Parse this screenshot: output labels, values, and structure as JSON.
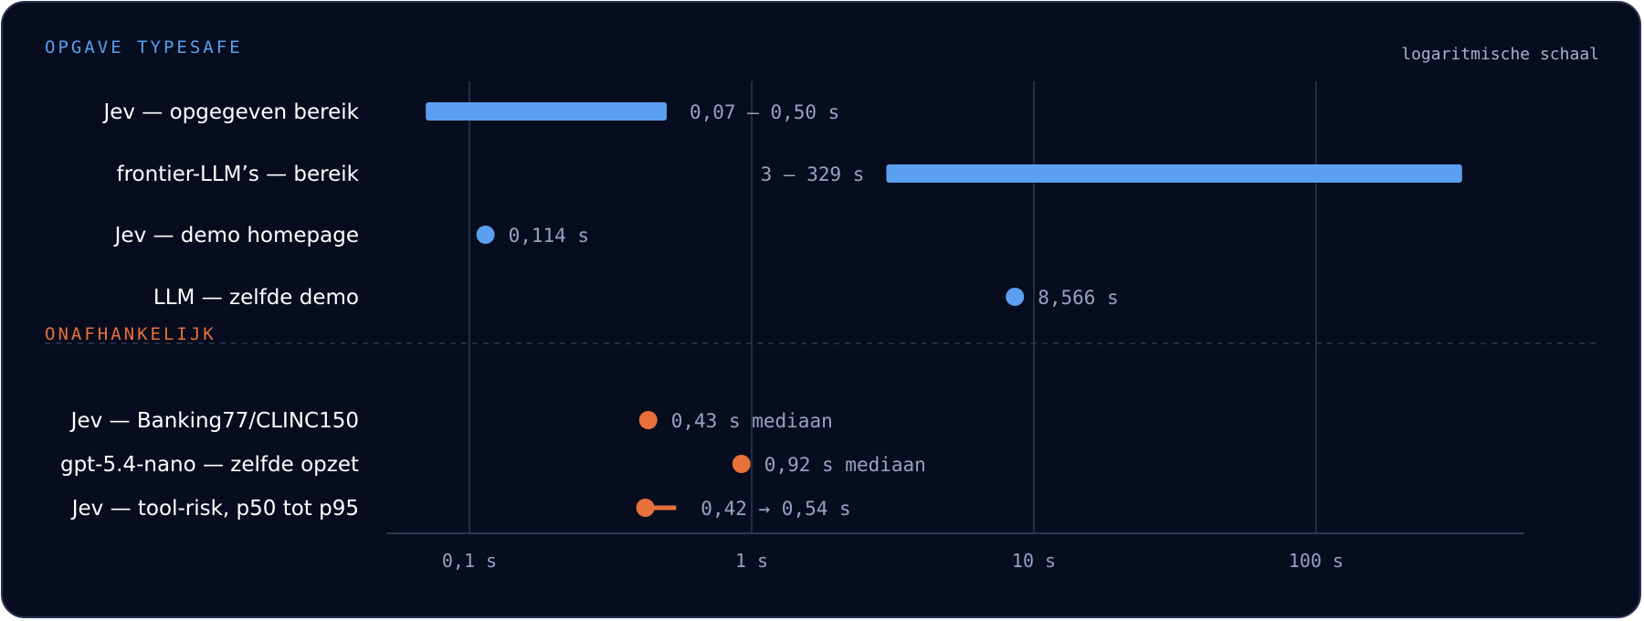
{
  "section_top": {
    "title": "OPGAVE TYPESAFE",
    "color": "#5a9ff0"
  },
  "section_bottom": {
    "title": "ONAFHANKELIJK",
    "color": "#e8703a"
  },
  "scale_note": "logaritmische schaal",
  "chart_data": {
    "type": "range-dot",
    "x_scale": "log",
    "x_ticks": [
      0.1,
      1,
      10,
      100
    ],
    "x_tick_labels": [
      "0,1 s",
      "1 s",
      "10 s",
      "100 s"
    ],
    "xlim": [
      0.05,
      800
    ],
    "grid": true,
    "rows": [
      {
        "label": "Jev — opgegeven bereik",
        "kind": "range",
        "start": 0.07,
        "end": 0.5,
        "value_label": "0,07 – 0,50 s",
        "group": "top",
        "label_side": "right"
      },
      {
        "label": "frontier-LLM’s — bereik",
        "kind": "range",
        "start": 3,
        "end": 329,
        "value_label": "3 – 329 s",
        "group": "top",
        "label_side": "left"
      },
      {
        "label": "Jev — demo homepage",
        "kind": "point",
        "value": 0.114,
        "value_label": "0,114 s",
        "group": "top"
      },
      {
        "label": "LLM — zelfde demo",
        "kind": "point",
        "value": 8.566,
        "value_label": "8,566 s",
        "group": "top"
      },
      {
        "label": "Jev — Banking77/CLINC150",
        "kind": "point",
        "value": 0.43,
        "value_label": "0,43 s mediaan",
        "group": "bottom"
      },
      {
        "label": "gpt-5.4-nano — zelfde opzet",
        "kind": "point",
        "value": 0.92,
        "value_label": "0,92 s mediaan",
        "group": "bottom"
      },
      {
        "label": "Jev — tool-risk, p50 tot p95",
        "kind": "lollipop",
        "start": 0.42,
        "end": 0.54,
        "value_label": "0,42 → 0,54 s",
        "group": "bottom"
      }
    ]
  }
}
